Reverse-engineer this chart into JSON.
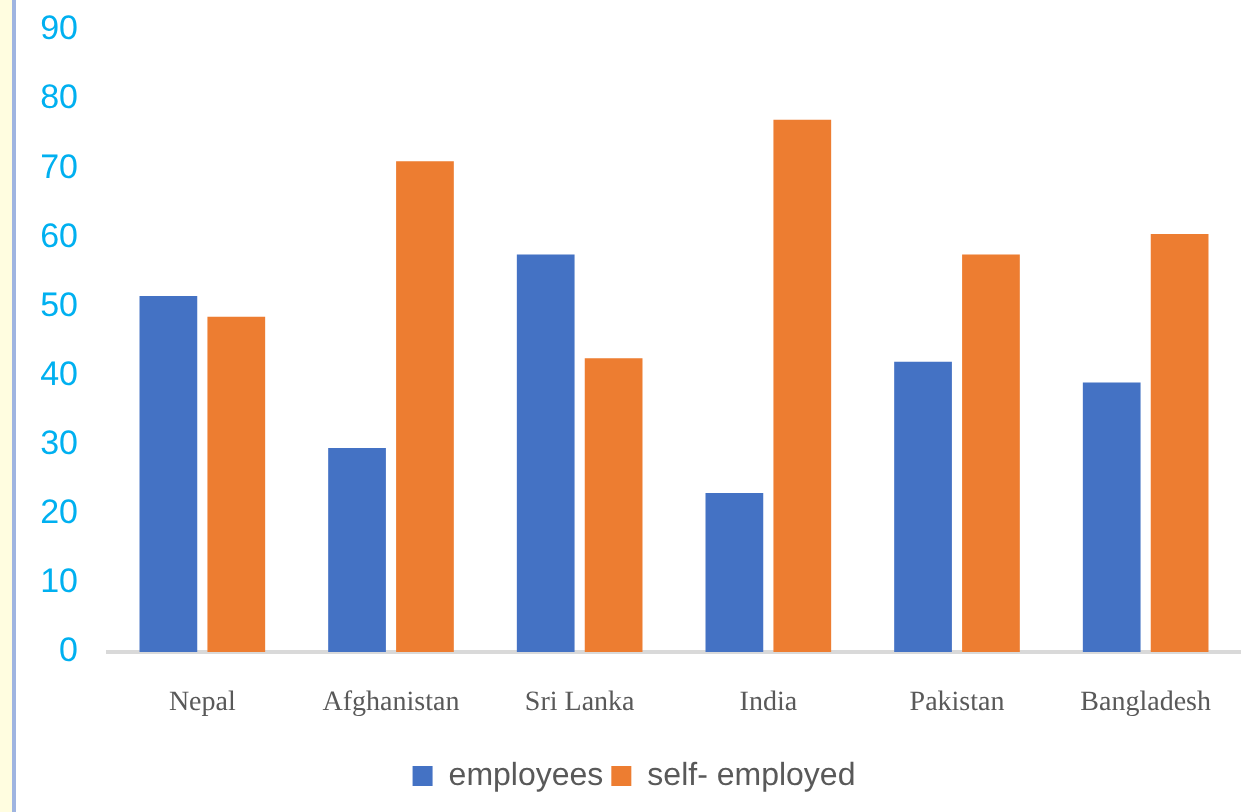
{
  "chart_data": {
    "type": "bar",
    "categories": [
      "Nepal",
      "Afghanistan",
      "Sri Lanka",
      "India",
      "Pakistan",
      "Bangladesh"
    ],
    "series": [
      {
        "name": "employees",
        "color": "#4472c4",
        "values": [
          51.5,
          29.5,
          57.5,
          23,
          42,
          39
        ]
      },
      {
        "name": "self- employed",
        "color": "#ed7d31",
        "values": [
          48.5,
          71,
          42.5,
          77,
          57.5,
          60.5
        ]
      }
    ],
    "ylim": [
      0,
      90
    ],
    "yticks": [
      0,
      10,
      20,
      30,
      40,
      50,
      60,
      70,
      80,
      90
    ],
    "grid": false,
    "legend": "bottom"
  }
}
